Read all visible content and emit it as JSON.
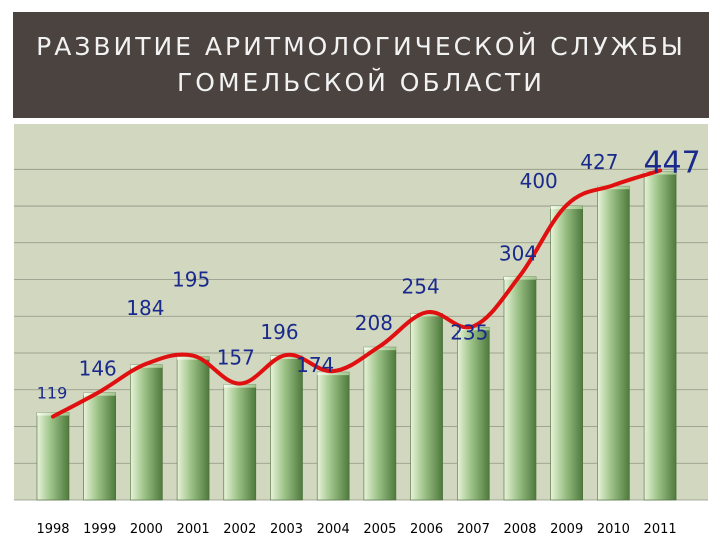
{
  "header": {
    "title_line1": "РАЗВИТИЕ АРИТМОЛОГИЧЕСКОЙ СЛУЖБЫ",
    "title_line2": "ГОМЕЛЬСКОЙ ОБЛАСТИ"
  },
  "colors": {
    "title_bg": "#4a4340",
    "plot_bg": "#d2d7bf",
    "bar_light": "#e7f3d8",
    "bar_mid": "#9fc48a",
    "bar_dark": "#4e7a3c",
    "trend_line": "#e01010",
    "value_label": "#1a2a8c"
  },
  "chart_data": {
    "type": "bar",
    "title": "РАЗВИТИЕ АРИТМОЛОГИЧЕСКОЙ СЛУЖБЫ ГОМЕЛЬСКОЙ ОБЛАСТИ",
    "xlabel": "",
    "ylabel": "",
    "categories": [
      "1998",
      "1999",
      "2000",
      "2001",
      "2002",
      "2003",
      "2004",
      "2005",
      "2006",
      "2007",
      "2008",
      "2009",
      "2010",
      "2011"
    ],
    "values": [
      119,
      146,
      184,
      195,
      157,
      196,
      174,
      208,
      254,
      235,
      304,
      400,
      427,
      447
    ],
    "value_labels": [
      "119",
      "146",
      "184",
      "195",
      "157",
      "196",
      "174",
      "208",
      "254",
      "235",
      "304",
      "400",
      "427",
      "447"
    ],
    "trend": "smoothed red line over bars",
    "ylim": [
      0,
      470
    ],
    "grid": true,
    "legend": "none"
  }
}
